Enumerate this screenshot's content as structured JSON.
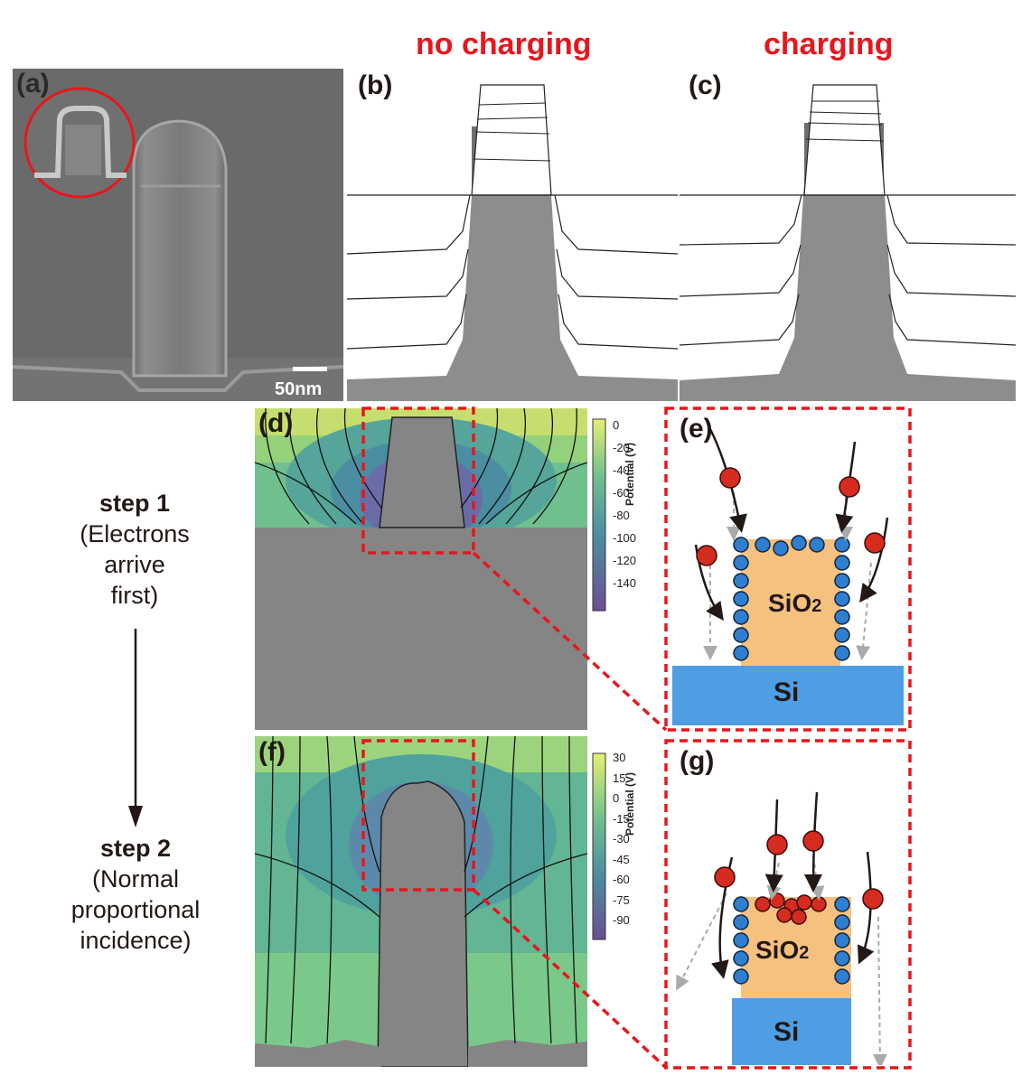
{
  "headers": {
    "no_charging": "no charging",
    "charging": "charging"
  },
  "panels": {
    "a": "(a)",
    "b": "(b)",
    "c": "(c)",
    "d": "(d)",
    "e": "(e)",
    "f": "(f)",
    "g": "(g)"
  },
  "sem": {
    "scale_bar": "50nm"
  },
  "colorbar_d": {
    "label": "Potential (V)",
    "ticks": [
      "0",
      "-20",
      "-40",
      "-60",
      "-80",
      "-100",
      "-120",
      "-140"
    ]
  },
  "colorbar_f": {
    "label": "Potential (V)",
    "ticks": [
      "30",
      "15",
      "0",
      "-15",
      "-30",
      "-45",
      "-60",
      "-75",
      "-90"
    ]
  },
  "step1": {
    "title": "step 1",
    "line1": "(Electrons",
    "line2": "arrive",
    "line3": "first)"
  },
  "step2": {
    "title": "step 2",
    "line1": "(Normal",
    "line2": "proportional",
    "line3": "incidence)"
  },
  "schematic_e": {
    "oxide": "SiO",
    "oxide_sub": "2",
    "substrate": "Si"
  },
  "schematic_g": {
    "oxide": "SiO",
    "oxide_sub": "2",
    "substrate": "Si"
  },
  "colors": {
    "red": "#e8161c",
    "orange": "#f6c17f",
    "blue": "#4f9ee3",
    "ion": "#d62b1f",
    "electron": "#2f7fd0"
  }
}
